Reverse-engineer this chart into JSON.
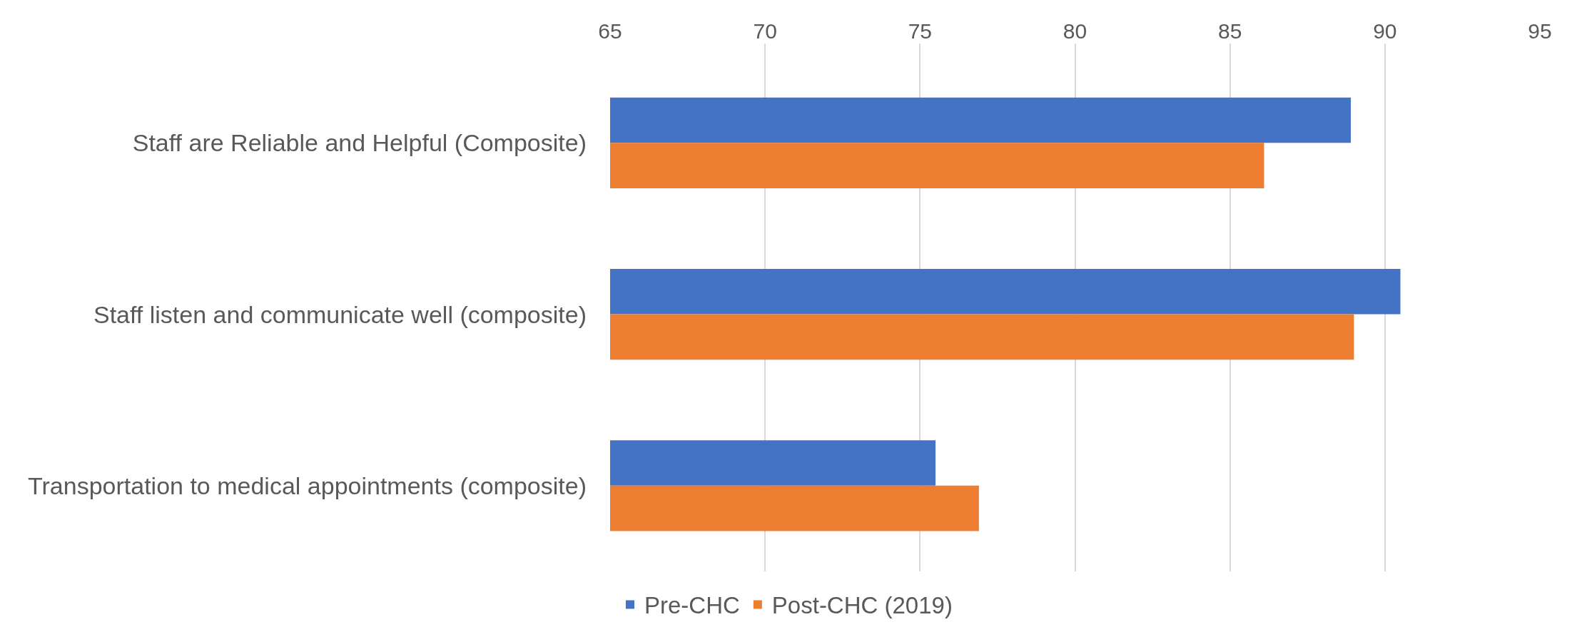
{
  "chart_data": {
    "type": "bar",
    "orientation": "horizontal",
    "categories": [
      "Staff are Reliable and Helpful (Composite)",
      "Staff listen and communicate well (composite)",
      "Transportation to medical appointments (composite)"
    ],
    "series": [
      {
        "name": "Pre-CHC",
        "color": "#4472c4",
        "values": [
          88.9,
          90.5,
          75.5
        ]
      },
      {
        "name": "Post-CHC (2019)",
        "color": "#ed7d31",
        "values": [
          86.1,
          89.0,
          76.9
        ]
      }
    ],
    "xlim": [
      65,
      95
    ],
    "xticks": [
      65,
      70,
      75,
      80,
      85,
      90,
      95
    ],
    "grid": "x",
    "legend": "bottom"
  }
}
